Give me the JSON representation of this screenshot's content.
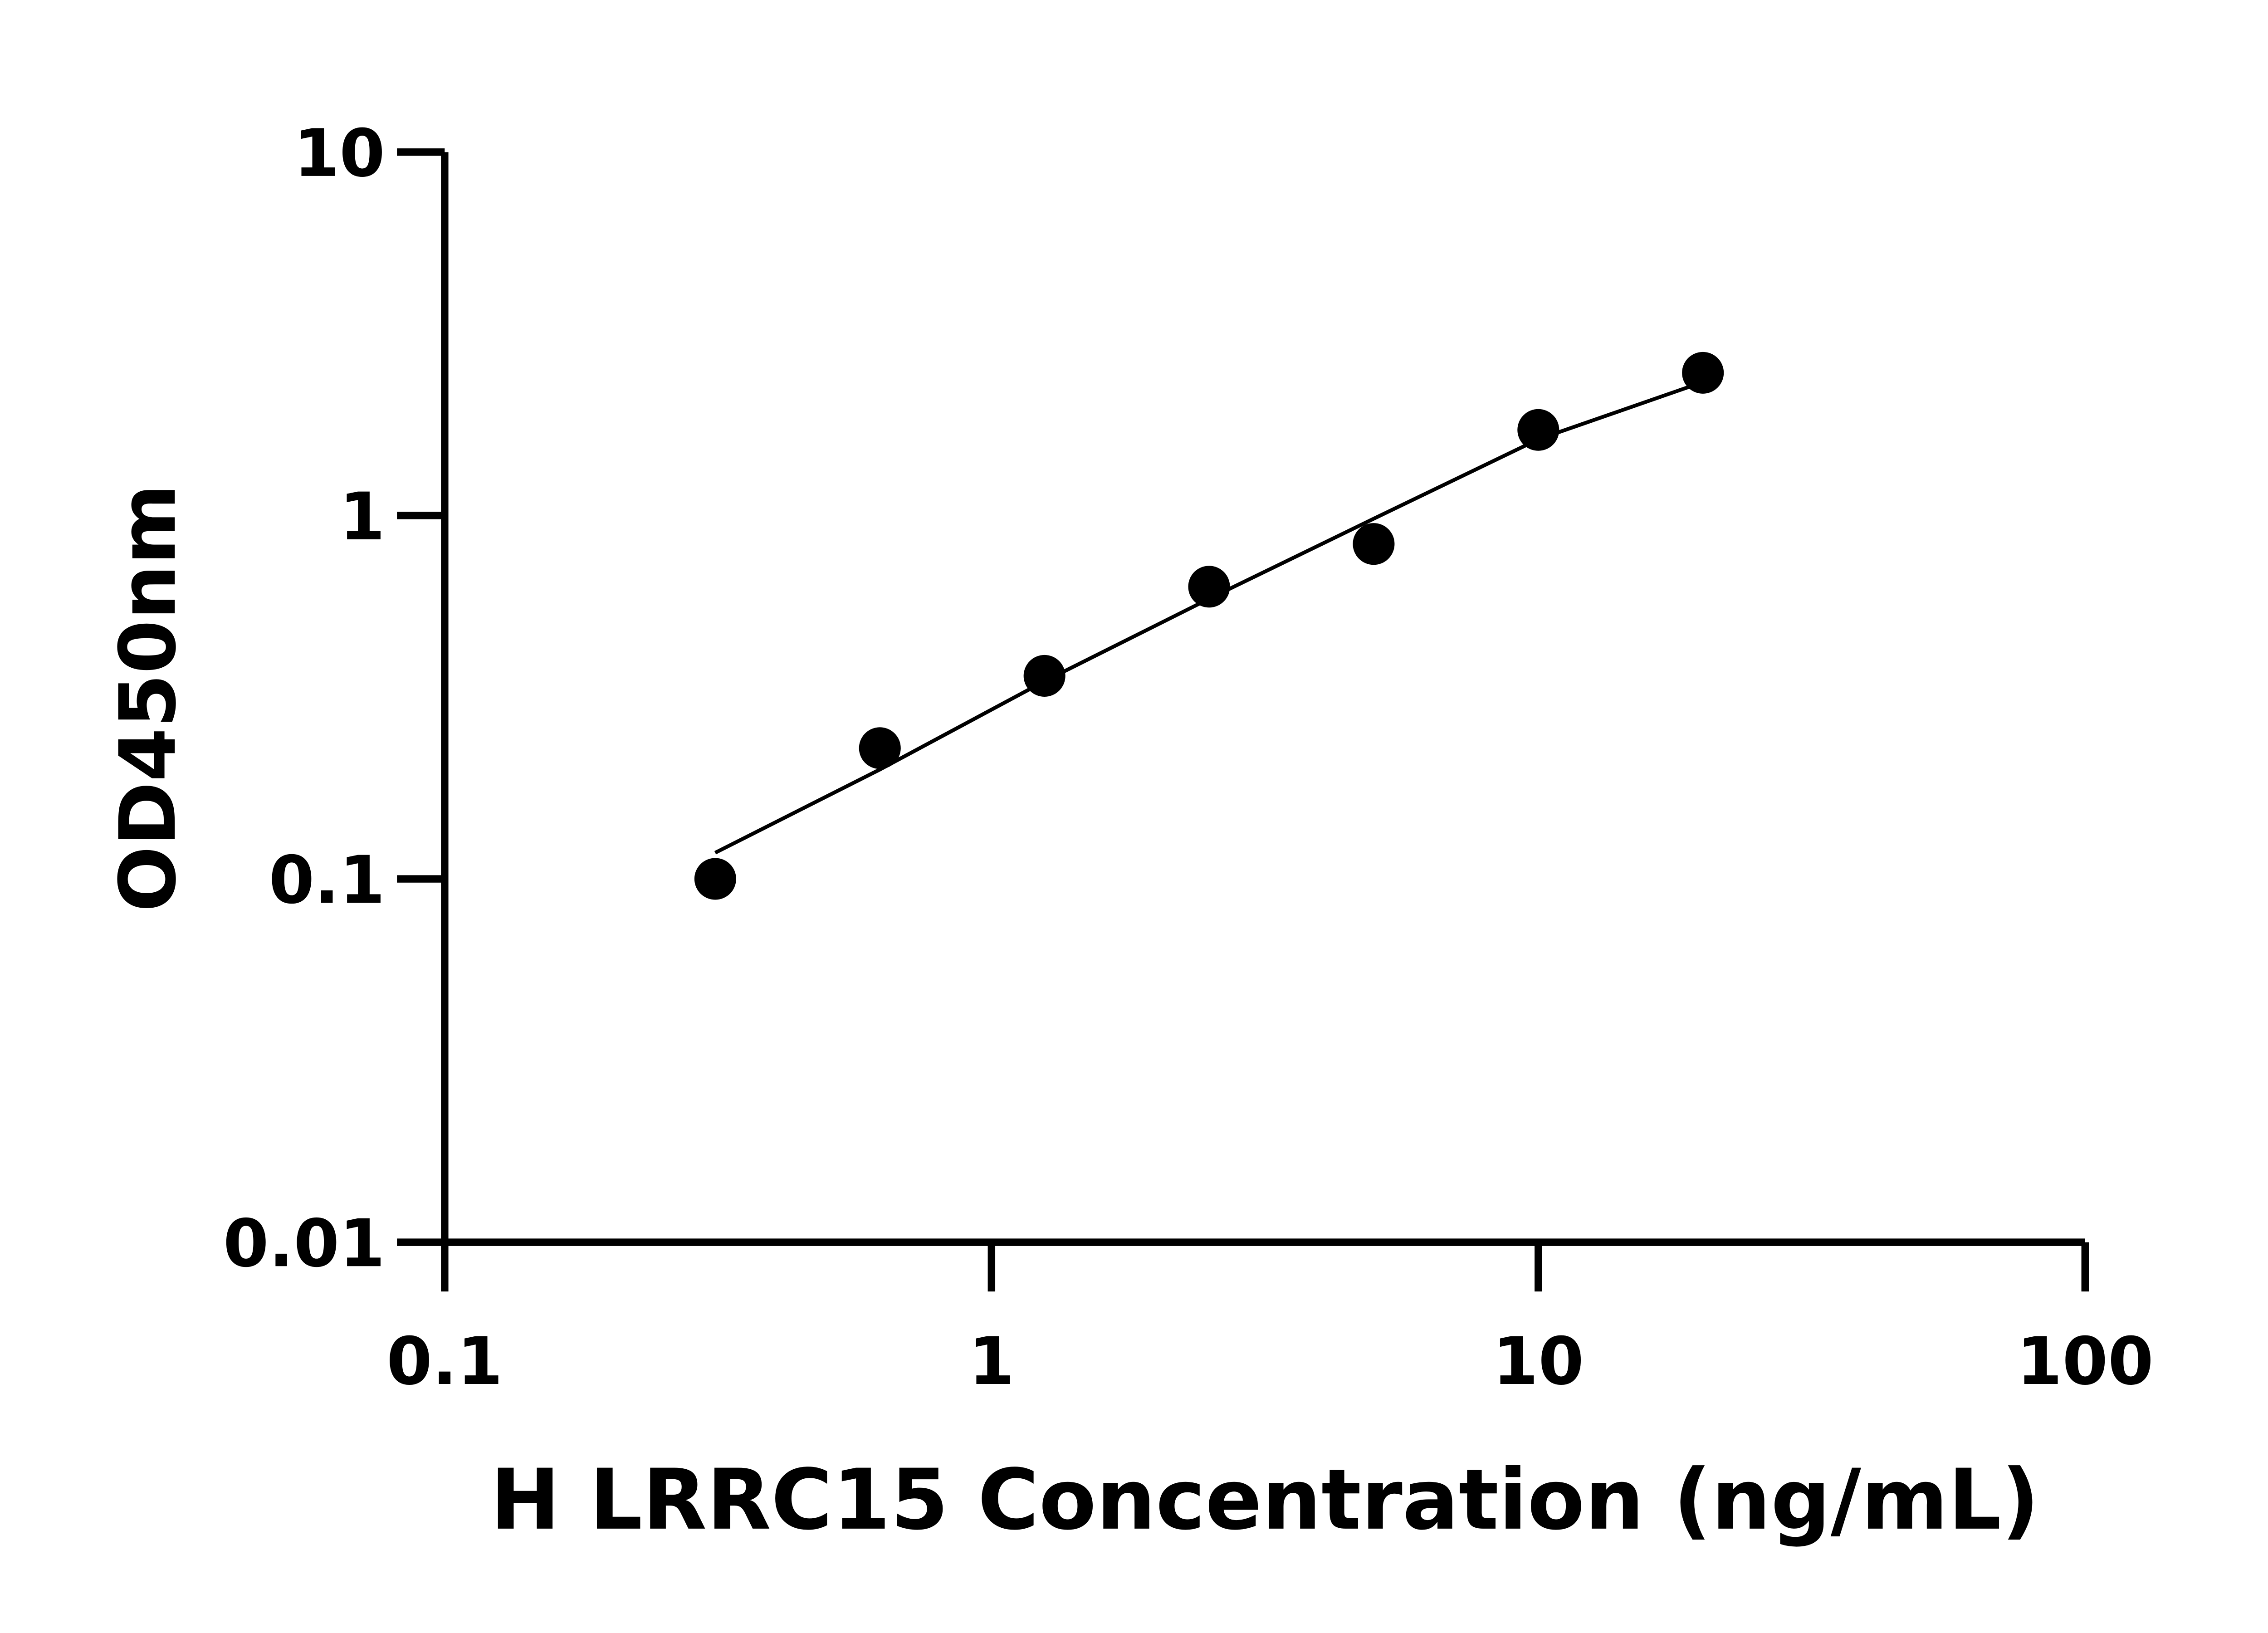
{
  "chart_data": {
    "type": "scatter",
    "title": "",
    "xlabel": "H LRRC15 Concentration (ng/mL)",
    "ylabel": "OD450nm",
    "x_scale": "log",
    "y_scale": "log",
    "xlim": [
      0.1,
      100
    ],
    "ylim": [
      0.01,
      10
    ],
    "x_ticks": [
      0.1,
      1,
      10,
      100
    ],
    "x_tick_labels": [
      "0.1",
      "1",
      "10",
      "100"
    ],
    "y_ticks": [
      0.01,
      0.1,
      1,
      10
    ],
    "y_tick_labels": [
      "0.01",
      "0.1",
      "1",
      "10"
    ],
    "grid": false,
    "legend": "none",
    "color": "#000000",
    "points": {
      "x": [
        0.3125,
        0.625,
        1.25,
        2.5,
        5,
        10,
        20
      ],
      "y": [
        0.1,
        0.229,
        0.362,
        0.637,
        0.835,
        1.72,
        2.47
      ]
    },
    "fit_curve": {
      "x": [
        0.3125,
        0.625,
        1.25,
        2.5,
        5,
        10,
        20
      ],
      "y": [
        0.118,
        0.2,
        0.35,
        0.59,
        0.98,
        1.62,
        2.33
      ]
    }
  }
}
